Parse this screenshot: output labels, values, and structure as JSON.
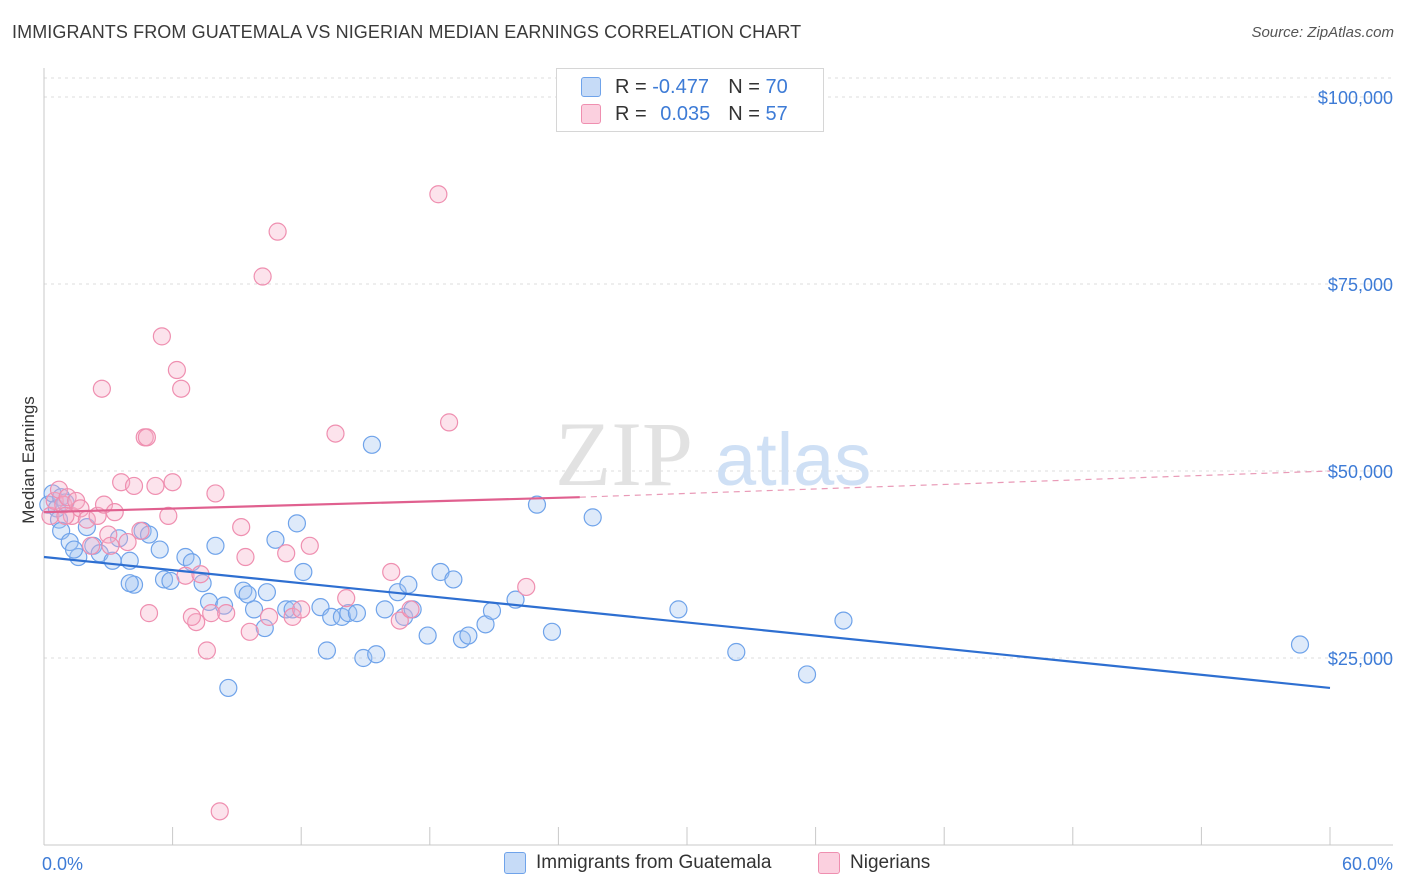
{
  "title": "IMMIGRANTS FROM GUATEMALA VS NIGERIAN MEDIAN EARNINGS CORRELATION CHART",
  "source": "Source: ZipAtlas.com",
  "watermark": {
    "zip": "ZIP",
    "atlas": "atlas"
  },
  "legend": {
    "r_label": "R =",
    "n_label": "N =",
    "rows": [
      {
        "r": "-0.477",
        "n": "70",
        "color": "#6fa3ea"
      },
      {
        "r": "0.035",
        "n": "57",
        "color": "#ef8fb0"
      }
    ]
  },
  "bottom_legend": {
    "series1": "Immigrants from Guatemala",
    "series2": "Nigerians"
  },
  "chart_data": {
    "type": "scatter",
    "xlabel": "",
    "ylabel": "Median Earnings",
    "x_tick_labels": [
      "0.0%",
      "60.0%"
    ],
    "y_tick_labels": [
      "$25,000",
      "$50,000",
      "$75,000",
      "$100,000"
    ],
    "xlim": [
      0,
      60
    ],
    "ylim": [
      0,
      102000
    ],
    "grid": true,
    "series": [
      {
        "name": "Immigrants from Guatemala",
        "color": "#6fa3ea",
        "trend": {
          "x": [
            0,
            60
          ],
          "y": [
            38500,
            21000
          ]
        },
        "points": [
          [
            0.2,
            45500
          ],
          [
            0.4,
            47000
          ],
          [
            0.6,
            45000
          ],
          [
            0.7,
            43500
          ],
          [
            0.8,
            46500
          ],
          [
            1.0,
            45800
          ],
          [
            0.8,
            42000
          ],
          [
            1.2,
            40500
          ],
          [
            1.6,
            38500
          ],
          [
            1.4,
            39500
          ],
          [
            2.0,
            42500
          ],
          [
            2.3,
            40000
          ],
          [
            2.6,
            39000
          ],
          [
            3.2,
            38000
          ],
          [
            3.5,
            41000
          ],
          [
            4.0,
            38000
          ],
          [
            4.6,
            42000
          ],
          [
            4.9,
            41500
          ],
          [
            5.4,
            39500
          ],
          [
            5.6,
            35500
          ],
          [
            5.9,
            35300
          ],
          [
            4.2,
            34800
          ],
          [
            4.0,
            35000
          ],
          [
            6.6,
            38500
          ],
          [
            6.9,
            37800
          ],
          [
            7.4,
            35000
          ],
          [
            7.7,
            32500
          ],
          [
            8.0,
            40000
          ],
          [
            8.4,
            32000
          ],
          [
            8.6,
            21000
          ],
          [
            9.3,
            34000
          ],
          [
            9.5,
            33500
          ],
          [
            9.8,
            31500
          ],
          [
            10.3,
            29000
          ],
          [
            10.4,
            33800
          ],
          [
            10.8,
            40800
          ],
          [
            11.3,
            31500
          ],
          [
            11.6,
            31500
          ],
          [
            11.8,
            43000
          ],
          [
            12.1,
            36500
          ],
          [
            12.9,
            31800
          ],
          [
            13.2,
            26000
          ],
          [
            13.4,
            30500
          ],
          [
            13.9,
            30500
          ],
          [
            14.2,
            31000
          ],
          [
            14.6,
            31000
          ],
          [
            14.9,
            25000
          ],
          [
            15.3,
            53500
          ],
          [
            15.5,
            25500
          ],
          [
            15.9,
            31500
          ],
          [
            16.5,
            33800
          ],
          [
            16.8,
            30500
          ],
          [
            17.0,
            34800
          ],
          [
            17.2,
            31500
          ],
          [
            17.9,
            28000
          ],
          [
            18.5,
            36500
          ],
          [
            19.5,
            27500
          ],
          [
            19.8,
            28000
          ],
          [
            19.1,
            35500
          ],
          [
            20.6,
            29500
          ],
          [
            20.9,
            31300
          ],
          [
            22.0,
            32800
          ],
          [
            23.0,
            45500
          ],
          [
            23.7,
            28500
          ],
          [
            25.6,
            43800
          ],
          [
            29.6,
            31500
          ],
          [
            32.3,
            25800
          ],
          [
            35.6,
            22800
          ],
          [
            37.3,
            30000
          ],
          [
            58.6,
            26800
          ]
        ]
      },
      {
        "name": "Nigerians",
        "color": "#ef8fb0",
        "trend": {
          "x": [
            0,
            25
          ],
          "y": [
            44500,
            46500
          ],
          "dashed_to": {
            "x": 60,
            "y": 50000
          }
        },
        "points": [
          [
            0.3,
            44000
          ],
          [
            0.5,
            46000
          ],
          [
            0.7,
            47500
          ],
          [
            0.9,
            45500
          ],
          [
            1.1,
            46500
          ],
          [
            1.3,
            44000
          ],
          [
            1.5,
            46000
          ],
          [
            1.7,
            45000
          ],
          [
            2.0,
            43500
          ],
          [
            2.2,
            40000
          ],
          [
            2.5,
            44000
          ],
          [
            2.8,
            45500
          ],
          [
            3.0,
            41500
          ],
          [
            3.3,
            44500
          ],
          [
            3.6,
            48500
          ],
          [
            3.9,
            40500
          ],
          [
            4.2,
            48000
          ],
          [
            4.5,
            42000
          ],
          [
            4.7,
            54500
          ],
          [
            4.9,
            31000
          ],
          [
            5.2,
            48000
          ],
          [
            5.5,
            68000
          ],
          [
            5.8,
            44000
          ],
          [
            6.0,
            48500
          ],
          [
            6.2,
            63500
          ],
          [
            6.4,
            61000
          ],
          [
            6.6,
            36000
          ],
          [
            7.1,
            29800
          ],
          [
            7.3,
            36200
          ],
          [
            7.6,
            26000
          ],
          [
            7.8,
            31000
          ],
          [
            8.0,
            47000
          ],
          [
            8.2,
            4500
          ],
          [
            8.5,
            31000
          ],
          [
            9.2,
            42500
          ],
          [
            9.4,
            38500
          ],
          [
            9.6,
            28500
          ],
          [
            10.2,
            76000
          ],
          [
            10.5,
            30500
          ],
          [
            10.9,
            82000
          ],
          [
            11.3,
            39000
          ],
          [
            11.6,
            30500
          ],
          [
            12.4,
            40000
          ],
          [
            13.6,
            55000
          ],
          [
            14.1,
            33000
          ],
          [
            16.2,
            36500
          ],
          [
            16.6,
            30000
          ],
          [
            17.1,
            31500
          ],
          [
            18.4,
            87000
          ],
          [
            18.9,
            56500
          ],
          [
            22.5,
            34500
          ],
          [
            2.7,
            61000
          ],
          [
            4.8,
            54500
          ],
          [
            1.0,
            44000
          ],
          [
            3.1,
            40000
          ],
          [
            6.9,
            30500
          ],
          [
            12.0,
            31500
          ]
        ]
      }
    ]
  }
}
